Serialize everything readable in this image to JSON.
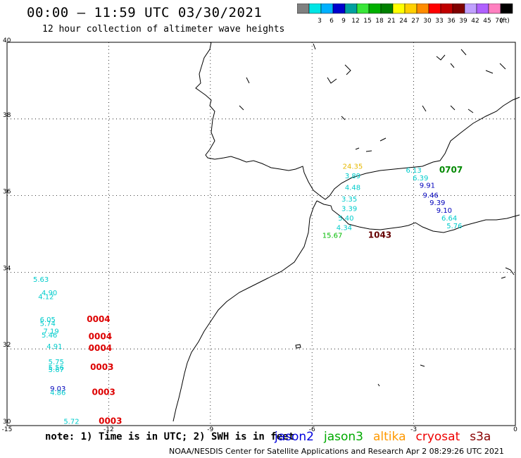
{
  "header": {
    "title": "00:00 – 11:59 UTC 03/30/2021",
    "subtitle": "12 hour collection of altimeter wave heights"
  },
  "colorbar": {
    "unit": "(ft)",
    "bins": [
      {
        "label": "",
        "color": "#808080"
      },
      {
        "label": "3",
        "color": "#00e5e5"
      },
      {
        "label": "6",
        "color": "#00b0ff"
      },
      {
        "label": "9",
        "color": "#0000cd"
      },
      {
        "label": "12",
        "color": "#00a0a0"
      },
      {
        "label": "15",
        "color": "#39e639"
      },
      {
        "label": "18",
        "color": "#00b000"
      },
      {
        "label": "21",
        "color": "#008000"
      },
      {
        "label": "24",
        "color": "#ffff00"
      },
      {
        "label": "27",
        "color": "#ffd000"
      },
      {
        "label": "30",
        "color": "#ff8c00"
      },
      {
        "label": "33",
        "color": "#ff0000"
      },
      {
        "label": "36",
        "color": "#c00000"
      },
      {
        "label": "39",
        "color": "#800000"
      },
      {
        "label": "42",
        "color": "#c0a0ff"
      },
      {
        "label": "45",
        "color": "#b060ff"
      },
      {
        "label": "70",
        "color": "#ff80c0"
      },
      {
        "label": "",
        "color": "#000000"
      }
    ]
  },
  "map": {
    "lon_range": [
      -15,
      0
    ],
    "lat_range": [
      30,
      40
    ],
    "lon_ticks": [
      "-15",
      "-12",
      "-9",
      "-6",
      "-3",
      "0"
    ],
    "lat_ticks": [
      "40",
      "38",
      "36",
      "34",
      "32",
      "30"
    ],
    "observations": [
      {
        "text": "5.63",
        "lon": -14.0,
        "lat": 33.75,
        "color": "#00cccc"
      },
      {
        "text": "4.90",
        "lon": -13.75,
        "lat": 33.4,
        "color": "#00cccc"
      },
      {
        "text": "4.12",
        "lon": -13.85,
        "lat": 33.3,
        "color": "#00cccc"
      },
      {
        "text": "6.05",
        "lon": -13.8,
        "lat": 32.7,
        "color": "#00cccc"
      },
      {
        "text": "5.74",
        "lon": -13.8,
        "lat": 32.6,
        "color": "#00cccc"
      },
      {
        "text": "7.19",
        "lon": -13.7,
        "lat": 32.4,
        "color": "#00cccc"
      },
      {
        "text": "5.46",
        "lon": -13.75,
        "lat": 32.3,
        "color": "#00cccc"
      },
      {
        "text": "4.91",
        "lon": -13.6,
        "lat": 32.0,
        "color": "#00cccc"
      },
      {
        "text": "5.75",
        "lon": -13.55,
        "lat": 31.6,
        "color": "#00cccc"
      },
      {
        "text": "5.56",
        "lon": -13.55,
        "lat": 31.45,
        "color": "#00cccc"
      },
      {
        "text": "5.67",
        "lon": -13.55,
        "lat": 31.4,
        "color": "#00cccc"
      },
      {
        "text": "9.03",
        "lon": -13.5,
        "lat": 30.9,
        "color": "#0000bb"
      },
      {
        "text": "4.86",
        "lon": -13.5,
        "lat": 30.8,
        "color": "#00cccc"
      },
      {
        "text": "5.72",
        "lon": -13.1,
        "lat": 30.05,
        "color": "#00cccc"
      },
      {
        "text": "0004",
        "lon": -12.3,
        "lat": 32.7,
        "color": "#dd0000"
      },
      {
        "text": "0004",
        "lon": -12.25,
        "lat": 32.25,
        "color": "#dd0000"
      },
      {
        "text": "0004",
        "lon": -12.25,
        "lat": 31.95,
        "color": "#dd0000"
      },
      {
        "text": "0003",
        "lon": -12.2,
        "lat": 31.45,
        "color": "#dd0000"
      },
      {
        "text": "0003",
        "lon": -12.15,
        "lat": 30.8,
        "color": "#dd0000"
      },
      {
        "text": "0003",
        "lon": -11.95,
        "lat": 30.05,
        "color": "#dd0000"
      },
      {
        "text": "24.35",
        "lon": -4.8,
        "lat": 36.7,
        "color": "#e6b800"
      },
      {
        "text": "3.89",
        "lon": -4.8,
        "lat": 36.45,
        "color": "#00cccc"
      },
      {
        "text": "4.48",
        "lon": -4.8,
        "lat": 36.15,
        "color": "#00cccc"
      },
      {
        "text": "3.35",
        "lon": -4.9,
        "lat": 35.85,
        "color": "#00cccc"
      },
      {
        "text": "3.39",
        "lon": -4.9,
        "lat": 35.6,
        "color": "#00cccc"
      },
      {
        "text": "5.40",
        "lon": -5.0,
        "lat": 35.35,
        "color": "#00cccc"
      },
      {
        "text": "4.34",
        "lon": -5.05,
        "lat": 35.1,
        "color": "#00cccc"
      },
      {
        "text": "15.67",
        "lon": -5.4,
        "lat": 34.9,
        "color": "#00bb00"
      },
      {
        "text": "1043",
        "lon": -4.0,
        "lat": 34.9,
        "color": "#660000"
      },
      {
        "text": "6.13",
        "lon": -3.0,
        "lat": 36.6,
        "color": "#00cccc"
      },
      {
        "text": "6.39",
        "lon": -2.8,
        "lat": 36.4,
        "color": "#00cccc"
      },
      {
        "text": "9.91",
        "lon": -2.6,
        "lat": 36.2,
        "color": "#0000bb"
      },
      {
        "text": "9.46",
        "lon": -2.5,
        "lat": 35.95,
        "color": "#0000bb"
      },
      {
        "text": "9.39",
        "lon": -2.3,
        "lat": 35.75,
        "color": "#0000bb"
      },
      {
        "text": "9.10",
        "lon": -2.1,
        "lat": 35.55,
        "color": "#0000bb"
      },
      {
        "text": "6.64",
        "lon": -1.95,
        "lat": 35.35,
        "color": "#00cccc"
      },
      {
        "text": "5.76",
        "lon": -1.8,
        "lat": 35.15,
        "color": "#00cccc"
      },
      {
        "text": "0707",
        "lon": -1.9,
        "lat": 36.6,
        "color": "#008800"
      }
    ]
  },
  "note": "note: 1) Time is in UTC; 2) SWH is in feet",
  "legend": [
    {
      "label": "jason2",
      "color": "#0000dd"
    },
    {
      "label": "jason3",
      "color": "#00aa00"
    },
    {
      "label": "altika",
      "color": "#ff9900"
    },
    {
      "label": "cryosat",
      "color": "#ee0000"
    },
    {
      "label": "s3a",
      "color": "#880000"
    }
  ],
  "credit": "NOAA/NESDIS Center for Satellite Applications and Research    Apr  2 08:29:26 UTC 2021"
}
